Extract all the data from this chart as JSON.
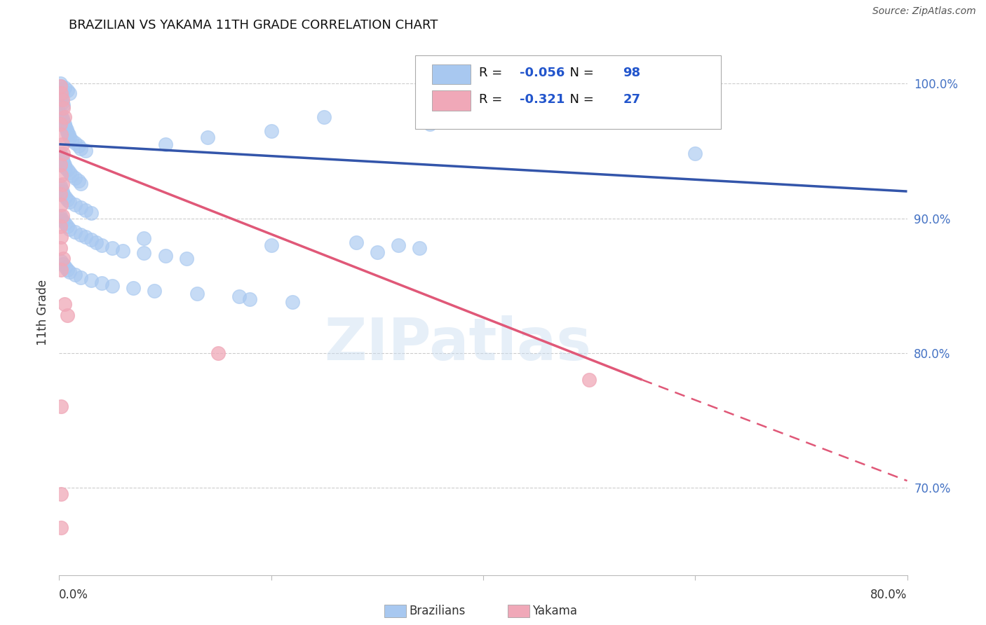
{
  "title": "BRAZILIAN VS YAKAMA 11TH GRADE CORRELATION CHART",
  "source": "Source: ZipAtlas.com",
  "ylabel": "11th Grade",
  "xlim": [
    0.0,
    0.8
  ],
  "ylim": [
    0.635,
    1.025
  ],
  "yticks": [
    0.7,
    0.8,
    0.9,
    1.0
  ],
  "ytick_labels": [
    "70.0%",
    "80.0%",
    "90.0%",
    "100.0%"
  ],
  "legend_r_blue": "-0.056",
  "legend_n_blue": "98",
  "legend_r_pink": "-0.321",
  "legend_n_pink": "27",
  "blue_color": "#A8C8F0",
  "pink_color": "#F0A8B8",
  "line_blue_color": "#3355AA",
  "line_pink_color": "#E05878",
  "watermark": "ZIPatlas",
  "blue_scatter": [
    [
      0.001,
      1.0
    ],
    [
      0.002,
      0.998
    ],
    [
      0.003,
      0.996
    ],
    [
      0.001,
      0.994
    ],
    [
      0.002,
      0.992
    ],
    [
      0.001,
      0.99
    ],
    [
      0.002,
      0.988
    ],
    [
      0.003,
      0.986
    ],
    [
      0.004,
      0.984
    ],
    [
      0.002,
      0.995
    ],
    [
      0.003,
      0.993
    ],
    [
      0.005,
      0.997
    ],
    [
      0.008,
      0.995
    ],
    [
      0.01,
      0.993
    ],
    [
      0.001,
      0.978
    ],
    [
      0.002,
      0.976
    ],
    [
      0.003,
      0.974
    ],
    [
      0.004,
      0.972
    ],
    [
      0.005,
      0.97
    ],
    [
      0.006,
      0.968
    ],
    [
      0.007,
      0.966
    ],
    [
      0.008,
      0.964
    ],
    [
      0.009,
      0.962
    ],
    [
      0.01,
      0.96
    ],
    [
      0.012,
      0.958
    ],
    [
      0.015,
      0.956
    ],
    [
      0.018,
      0.954
    ],
    [
      0.02,
      0.952
    ],
    [
      0.025,
      0.95
    ],
    [
      0.001,
      0.948
    ],
    [
      0.002,
      0.946
    ],
    [
      0.003,
      0.944
    ],
    [
      0.004,
      0.942
    ],
    [
      0.005,
      0.94
    ],
    [
      0.006,
      0.938
    ],
    [
      0.008,
      0.936
    ],
    [
      0.01,
      0.934
    ],
    [
      0.012,
      0.932
    ],
    [
      0.015,
      0.93
    ],
    [
      0.018,
      0.928
    ],
    [
      0.02,
      0.926
    ],
    [
      0.001,
      0.924
    ],
    [
      0.002,
      0.922
    ],
    [
      0.003,
      0.92
    ],
    [
      0.004,
      0.918
    ],
    [
      0.006,
      0.916
    ],
    [
      0.008,
      0.914
    ],
    [
      0.01,
      0.912
    ],
    [
      0.015,
      0.91
    ],
    [
      0.02,
      0.908
    ],
    [
      0.025,
      0.906
    ],
    [
      0.03,
      0.904
    ],
    [
      0.001,
      0.902
    ],
    [
      0.002,
      0.9
    ],
    [
      0.004,
      0.898
    ],
    [
      0.006,
      0.896
    ],
    [
      0.008,
      0.894
    ],
    [
      0.01,
      0.892
    ],
    [
      0.015,
      0.89
    ],
    [
      0.02,
      0.888
    ],
    [
      0.025,
      0.886
    ],
    [
      0.03,
      0.884
    ],
    [
      0.035,
      0.882
    ],
    [
      0.04,
      0.88
    ],
    [
      0.05,
      0.878
    ],
    [
      0.06,
      0.876
    ],
    [
      0.08,
      0.874
    ],
    [
      0.1,
      0.872
    ],
    [
      0.12,
      0.87
    ],
    [
      0.002,
      0.868
    ],
    [
      0.004,
      0.866
    ],
    [
      0.006,
      0.864
    ],
    [
      0.008,
      0.862
    ],
    [
      0.01,
      0.86
    ],
    [
      0.015,
      0.858
    ],
    [
      0.02,
      0.856
    ],
    [
      0.03,
      0.854
    ],
    [
      0.04,
      0.852
    ],
    [
      0.05,
      0.85
    ],
    [
      0.07,
      0.848
    ],
    [
      0.09,
      0.846
    ],
    [
      0.13,
      0.844
    ],
    [
      0.17,
      0.842
    ],
    [
      0.1,
      0.955
    ],
    [
      0.14,
      0.96
    ],
    [
      0.2,
      0.965
    ],
    [
      0.25,
      0.975
    ],
    [
      0.35,
      0.97
    ],
    [
      0.6,
      0.948
    ],
    [
      0.08,
      0.885
    ],
    [
      0.2,
      0.88
    ],
    [
      0.3,
      0.875
    ],
    [
      0.32,
      0.88
    ],
    [
      0.34,
      0.878
    ],
    [
      0.28,
      0.882
    ],
    [
      0.18,
      0.84
    ],
    [
      0.22,
      0.838
    ]
  ],
  "pink_scatter": [
    [
      0.001,
      0.998
    ],
    [
      0.002,
      0.993
    ],
    [
      0.003,
      0.988
    ],
    [
      0.004,
      0.982
    ],
    [
      0.005,
      0.975
    ],
    [
      0.001,
      0.97
    ],
    [
      0.002,
      0.962
    ],
    [
      0.003,
      0.955
    ],
    [
      0.004,
      0.948
    ],
    [
      0.001,
      0.94
    ],
    [
      0.002,
      0.932
    ],
    [
      0.003,
      0.925
    ],
    [
      0.001,
      0.918
    ],
    [
      0.002,
      0.91
    ],
    [
      0.003,
      0.902
    ],
    [
      0.001,
      0.894
    ],
    [
      0.002,
      0.886
    ],
    [
      0.001,
      0.878
    ],
    [
      0.004,
      0.87
    ],
    [
      0.002,
      0.862
    ],
    [
      0.005,
      0.836
    ],
    [
      0.008,
      0.828
    ],
    [
      0.15,
      0.8
    ],
    [
      0.5,
      0.78
    ],
    [
      0.002,
      0.76
    ],
    [
      0.002,
      0.695
    ],
    [
      0.002,
      0.67
    ]
  ],
  "blue_trendline": [
    [
      0.0,
      0.955
    ],
    [
      0.8,
      0.92
    ]
  ],
  "pink_trendline_solid": [
    [
      0.0,
      0.95
    ],
    [
      0.55,
      0.78
    ]
  ],
  "pink_trendline_dashed": [
    [
      0.55,
      0.78
    ],
    [
      0.8,
      0.705
    ]
  ]
}
